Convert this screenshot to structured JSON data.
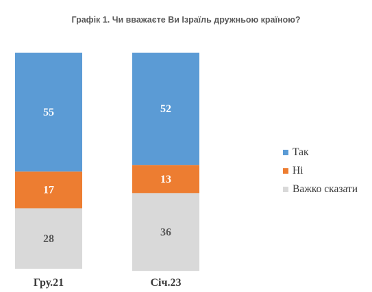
{
  "title": "Графік 1. Чи вважаєте Ви Ізраїль дружньою країною?",
  "chart_data": {
    "type": "bar",
    "stacked": true,
    "percent": true,
    "title": "Графік 1. Чи вважаєте Ви Ізраїль дружньою країною?",
    "categories": [
      "Гру.21",
      "Січ.23"
    ],
    "series": [
      {
        "name": "Так",
        "values": [
          55,
          52
        ],
        "color": "#5b9bd5",
        "label_color": "#ffffff"
      },
      {
        "name": "Ні",
        "values": [
          17,
          13
        ],
        "color": "#ed7d31",
        "label_color": "#ffffff"
      },
      {
        "name": "Важко сказати",
        "values": [
          28,
          36
        ],
        "color": "#d9d9d9",
        "label_color": "#595959"
      }
    ],
    "ylim": [
      0,
      100
    ],
    "grid": false,
    "legend_position": "right"
  }
}
